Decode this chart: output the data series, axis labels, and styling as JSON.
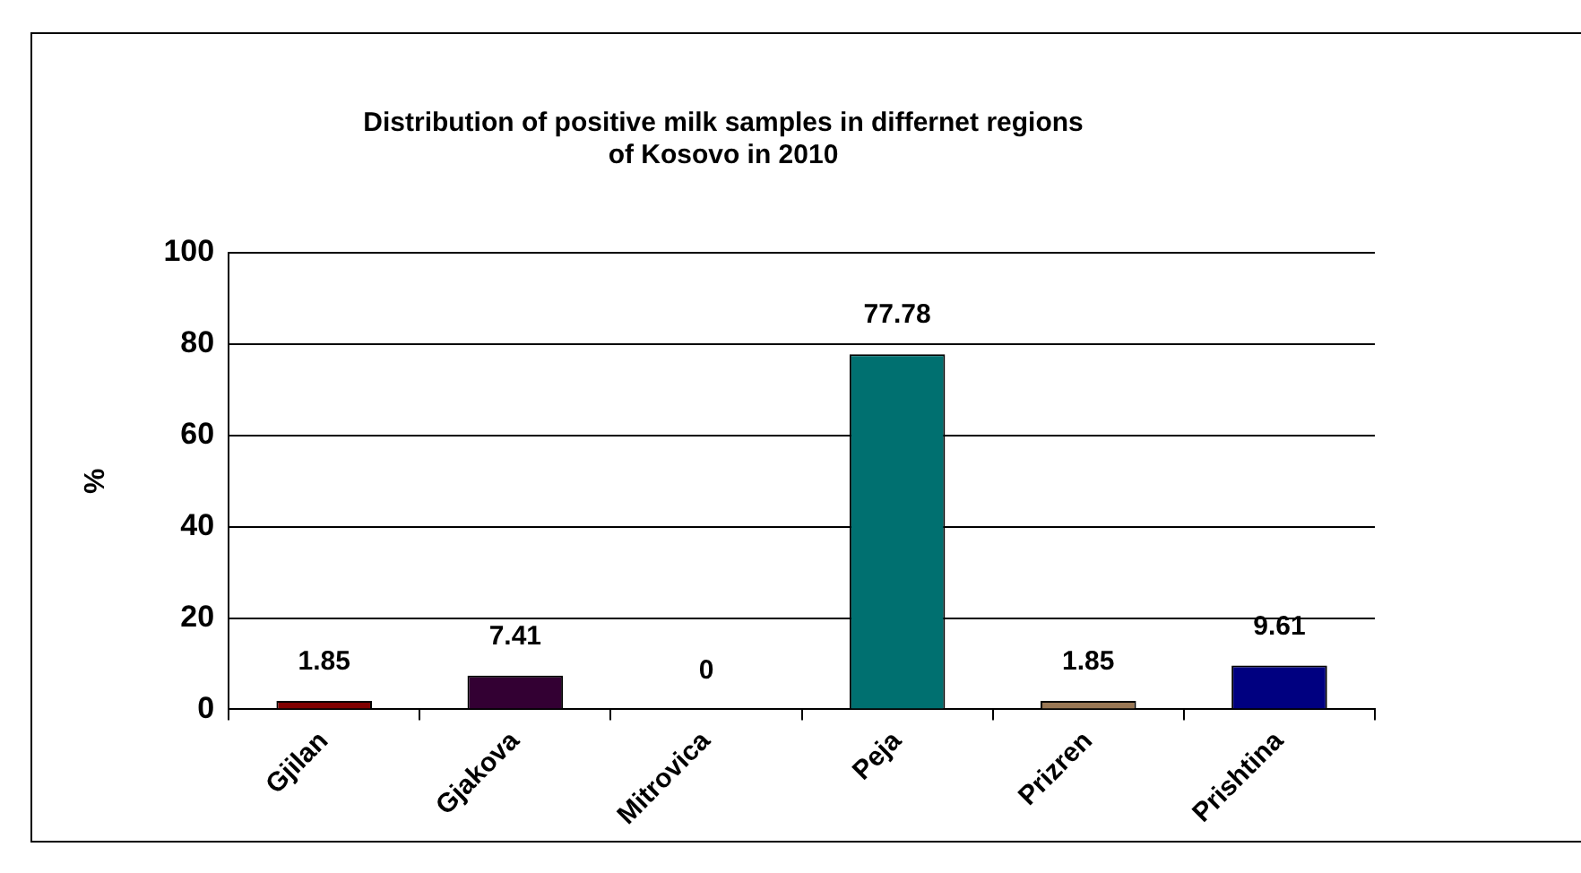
{
  "chart_data": {
    "type": "bar",
    "title": "Distribution of positive milk samples in differnet regions of Kosovo in 2010",
    "ylabel": "%",
    "categories": [
      "Gjilan",
      "Gjakova",
      "Mitrovica",
      "Peja",
      "Prizren",
      "Prishtina"
    ],
    "values": [
      1.85,
      7.41,
      0,
      77.78,
      1.85,
      9.61
    ],
    "colors": [
      "#800000",
      "#330033",
      "#808080",
      "#007070",
      "#997755",
      "#000080"
    ],
    "ylim": [
      0,
      100
    ],
    "yticks": [
      0,
      20,
      40,
      60,
      80,
      100
    ],
    "grid": "y",
    "data_labels": true,
    "legend": false
  }
}
